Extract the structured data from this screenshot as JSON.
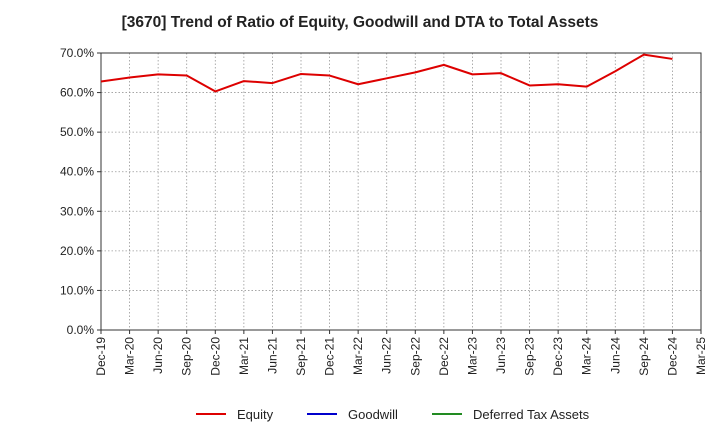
{
  "chart_data": {
    "type": "line",
    "title": "[3670]  Trend of Ratio of Equity, Goodwill and DTA to Total Assets",
    "xlabel": "",
    "ylabel": "",
    "ylim": [
      0,
      70
    ],
    "y_ticks": [
      "0.0%",
      "10.0%",
      "20.0%",
      "30.0%",
      "40.0%",
      "50.0%",
      "60.0%",
      "70.0%"
    ],
    "x_tick_labels": [
      "Dec-19",
      "Mar-20",
      "Jun-20",
      "Sep-20",
      "Dec-20",
      "Mar-21",
      "Jun-21",
      "Sep-21",
      "Dec-21",
      "Mar-22",
      "Jun-22",
      "Sep-22",
      "Dec-22",
      "Mar-23",
      "Jun-23",
      "Sep-23",
      "Dec-23",
      "Mar-24",
      "Jun-24",
      "Sep-24",
      "Dec-24",
      "Mar-25"
    ],
    "grid": true,
    "legend_position": "bottom",
    "series": [
      {
        "name": "Equity",
        "color": "#dd0000",
        "values": [
          62.8,
          63.8,
          64.6,
          64.3,
          60.3,
          62.9,
          62.4,
          64.7,
          64.3,
          62.1,
          63.6,
          65.1,
          67.0,
          64.6,
          64.9,
          61.8,
          62.1,
          61.5,
          65.4,
          69.6,
          68.5,
          null
        ]
      },
      {
        "name": "Goodwill",
        "color": "#0000cc",
        "values": []
      },
      {
        "name": "Deferred Tax Assets",
        "color": "#228b22",
        "values": []
      }
    ]
  }
}
